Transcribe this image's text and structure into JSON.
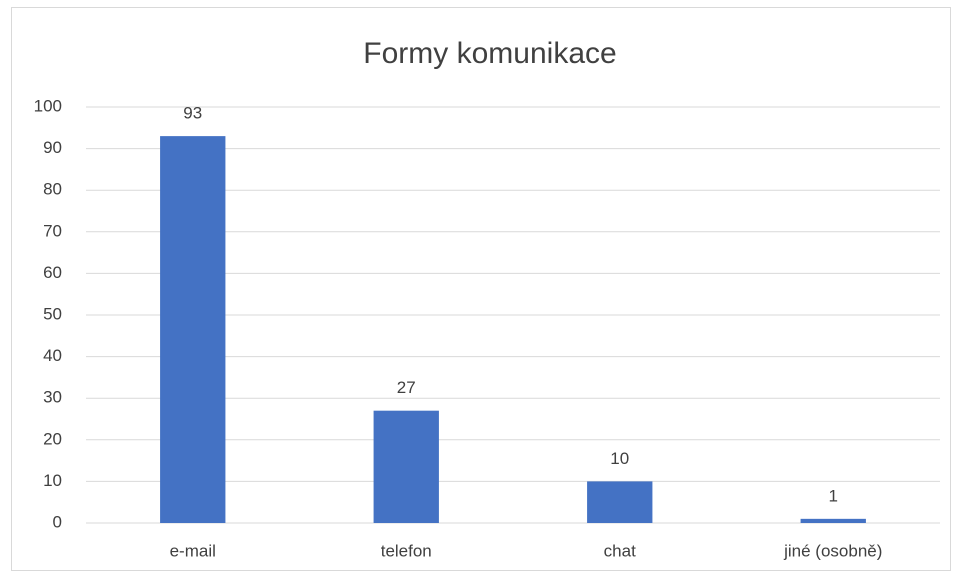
{
  "chart_data": {
    "type": "bar",
    "title": "Formy komunikace",
    "categories": [
      "e-mail",
      "telefon",
      "chat",
      "jiné (osobně)"
    ],
    "values": [
      93,
      27,
      10,
      1
    ],
    "color": "#4472c4",
    "ylim": [
      0,
      100
    ],
    "yticks": [
      0,
      10,
      20,
      30,
      40,
      50,
      60,
      70,
      80,
      90,
      100
    ],
    "grid": true
  }
}
